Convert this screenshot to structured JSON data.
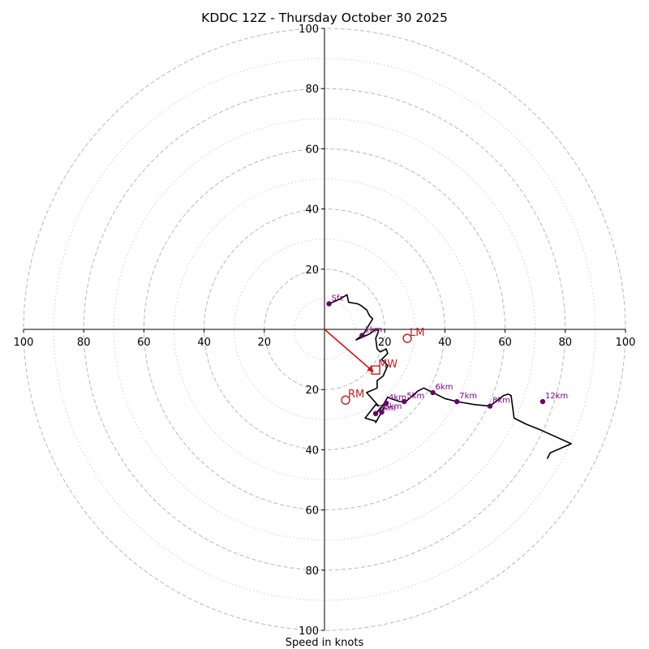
{
  "chart_data": {
    "type": "hodograph",
    "title": "KDDC 12Z - Thursday October 30 2025",
    "xlabel": "Speed in knots",
    "units": "knots",
    "max_speed": 100,
    "major_rings": [
      20,
      40,
      60,
      80,
      100
    ],
    "minor_rings": [
      10,
      30,
      50,
      70,
      90
    ],
    "x_tick_labels": [
      "100",
      "80",
      "60",
      "40",
      "20",
      "20",
      "40",
      "60",
      "80",
      "100"
    ],
    "x_tick_values": [
      -100,
      -80,
      -60,
      -40,
      -20,
      20,
      40,
      60,
      80,
      100
    ],
    "y_tick_labels": [
      "100",
      "80",
      "60",
      "40",
      "20",
      "20",
      "40",
      "60",
      "80",
      "100"
    ],
    "y_tick_values": [
      100,
      80,
      60,
      40,
      20,
      -20,
      -40,
      -60,
      -80,
      -100
    ],
    "hodograph": {
      "u": [
        1.5,
        5,
        7.5,
        8,
        11,
        12,
        14,
        15,
        16,
        13,
        10.5,
        15,
        17,
        18,
        17,
        17.5,
        18.5,
        20.5,
        21,
        19,
        21,
        19.5,
        17.5,
        17.5,
        14,
        18,
        17,
        13.5,
        17,
        17,
        19.5,
        20.5,
        19.5,
        17,
        19,
        21,
        22,
        25,
        27,
        31,
        33,
        36,
        40,
        44,
        50,
        55,
        57.5,
        59.5,
        61,
        62,
        63,
        67,
        72,
        82,
        75,
        74
      ],
      "v": [
        8.5,
        10,
        11.5,
        9,
        8.5,
        8,
        6.5,
        4.5,
        3.5,
        -1.5,
        -3.5,
        -1.5,
        0,
        -0.5,
        -3,
        -6.5,
        -7.5,
        -6.5,
        -8,
        -10,
        -12,
        -15.5,
        -17,
        -19.5,
        -21,
        -25.5,
        -25,
        -29.5,
        -30.5,
        -31,
        -26.5,
        -24,
        -25,
        -28,
        -26,
        -22.5,
        -23,
        -24,
        -24,
        -20.5,
        -19.5,
        -21,
        -23,
        -24,
        -25,
        -25.5,
        -23.5,
        -22,
        -21.5,
        -22,
        -29.5,
        -31.5,
        -33.5,
        -38,
        -41,
        -43
      ]
    },
    "height_markers": [
      {
        "label": "Sfc",
        "u": 1.5,
        "v": 8.5
      },
      {
        "label": "1km",
        "u": 12.5,
        "v": -2
      },
      {
        "label": "2km",
        "u": 17,
        "v": -28
      },
      {
        "label": "3km",
        "u": 19,
        "v": -27.5
      },
      {
        "label": "4km",
        "u": 20.5,
        "v": -24.5
      },
      {
        "label": "5km",
        "u": 26.5,
        "v": -24
      },
      {
        "label": "6km",
        "u": 36,
        "v": -21
      },
      {
        "label": "7km",
        "u": 44,
        "v": -24
      },
      {
        "label": "8km",
        "u": 55,
        "v": -25.5
      },
      {
        "label": "12km",
        "u": 72.5,
        "v": -24
      }
    ],
    "storm_motion": [
      {
        "label": "LM",
        "u": 27.5,
        "v": -3
      },
      {
        "label": "MW",
        "u": 17,
        "v": -13.5
      },
      {
        "label": "RM",
        "u": 7,
        "v": -23.5
      }
    ],
    "mean_wind_arrow": {
      "from_u": 0,
      "from_v": 0,
      "to_u": 17,
      "to_v": -13.5
    },
    "colors": {
      "hodograph_line": "#000000",
      "height_marker": "#6a006a",
      "height_label": "#800080",
      "storm_motion": "#c02020",
      "mean_wind_arrow": "#e01010",
      "major_ring": "#b8b8b8",
      "minor_ring": "#cfcfcf"
    }
  }
}
